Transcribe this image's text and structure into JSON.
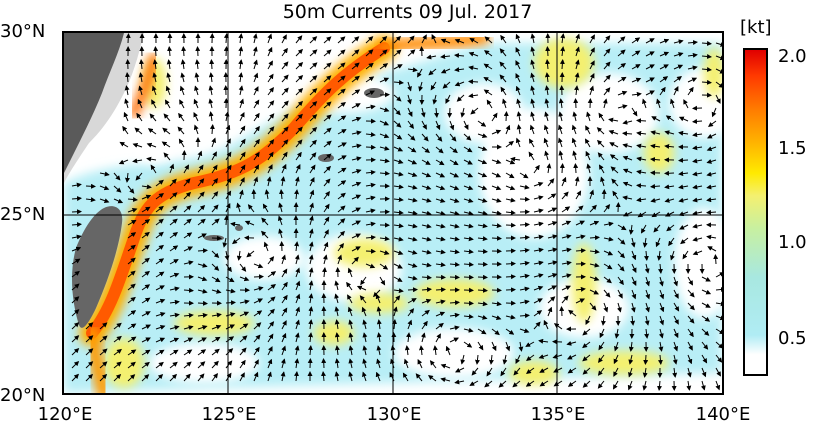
{
  "title": "50m Currents  09 Jul. 2017",
  "lat_labels": [
    "30°N",
    "25°N",
    "20°N"
  ],
  "lon_labels": [
    "120°E",
    "125°E",
    "130°E",
    "135°E",
    "140°E"
  ],
  "colorbar": {
    "unit": "[kt]",
    "ticks": [
      "2.0",
      "1.5",
      "1.0",
      "0.5"
    ],
    "range": [
      0.3,
      2.0
    ],
    "colors": [
      "#ffffff",
      "#b0ecf4",
      "#a8e8e0",
      "#c8f0a0",
      "#f4f070",
      "#ffea00",
      "#ffb000",
      "#ff7a00",
      "#ff3a00",
      "#e00000"
    ]
  },
  "colors": {
    "land_taiwan": "#666666",
    "land_china": "#5a5a5a",
    "land_china_shelf": "#d8d8d8",
    "kuroshio": "#ff4a00",
    "weak_current": "#b8eef6",
    "moderate_current": "#f4f070",
    "arrow": "#000000",
    "grid": "#000000"
  }
}
